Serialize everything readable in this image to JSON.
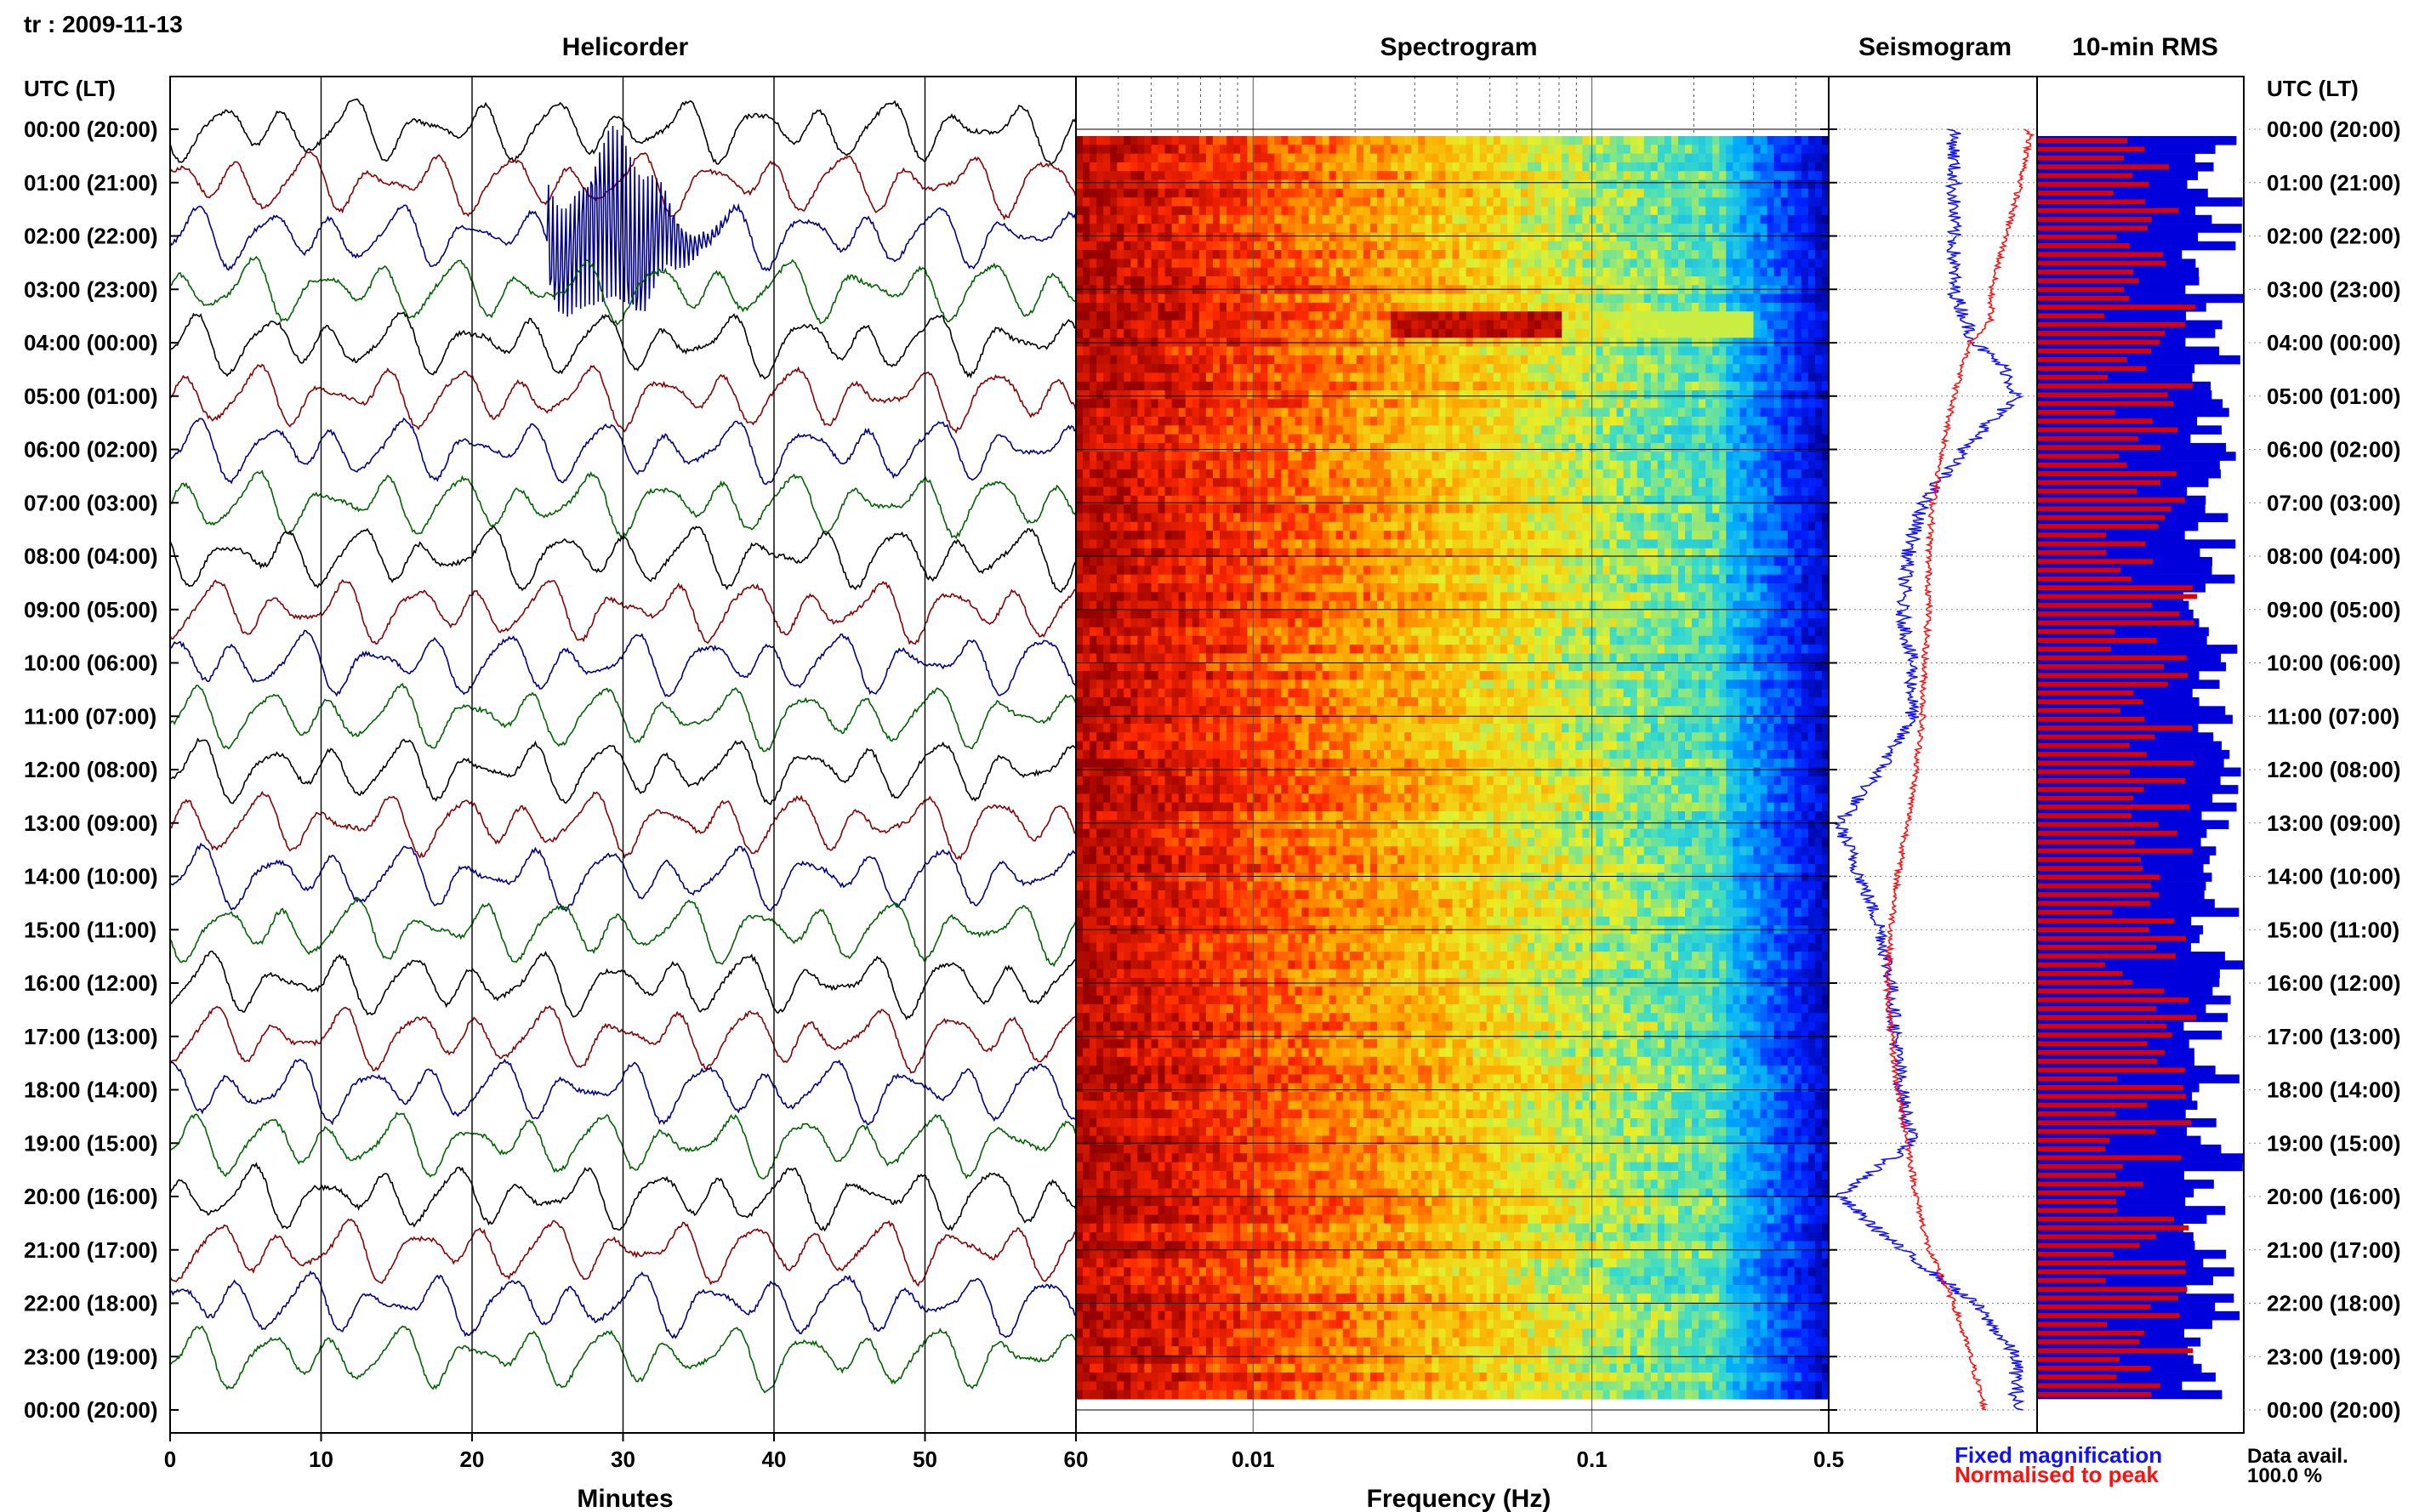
{
  "station_title": "tr : 2009-11-13",
  "panels": {
    "helicorder": "Helicorder",
    "spectrogram": "Spectrogram",
    "seismogram": "Seismogram",
    "rms": "10-min RMS"
  },
  "time_axis_header": "UTC (LT)",
  "time_labels": [
    "00:00 (20:00)",
    "01:00 (21:00)",
    "02:00 (22:00)",
    "03:00 (23:00)",
    "04:00 (00:00)",
    "05:00 (01:00)",
    "06:00 (02:00)",
    "07:00 (03:00)",
    "08:00 (04:00)",
    "09:00 (05:00)",
    "10:00 (06:00)",
    "11:00 (07:00)",
    "12:00 (08:00)",
    "13:00 (09:00)",
    "14:00 (10:00)",
    "15:00 (11:00)",
    "16:00 (12:00)",
    "17:00 (13:00)",
    "18:00 (14:00)",
    "19:00 (15:00)",
    "20:00 (16:00)",
    "21:00 (17:00)",
    "22:00 (18:00)",
    "23:00 (19:00)",
    "00:00 (20:00)"
  ],
  "helicorder_xlabel": "Minutes",
  "helicorder_ticks": [
    "0",
    "10",
    "20",
    "30",
    "40",
    "50",
    "60"
  ],
  "spectrogram_xlabel": "Frequency (Hz)",
  "spectrogram_ticks": [
    "0.01",
    "0.1",
    "0.5"
  ],
  "legend": {
    "fixed": "Fixed magnification",
    "normalised": "Normalised to peak",
    "data_avail_label": "Data avail.",
    "data_avail_value": "100.0 %"
  },
  "colors": {
    "trace_cycle": [
      "#000000",
      "#8b0000",
      "#00008b",
      "#006400"
    ],
    "fixed": "#1010ff",
    "normalised": "#ff1010",
    "rms_fixed": "#0000dd",
    "rms_normalised": "#dd0000"
  },
  "chart_data": [
    {
      "type": "line",
      "name": "Helicorder",
      "x_range_minutes": [
        0,
        60
      ],
      "rows": 24,
      "trace_color_cycle": [
        "black",
        "darkred",
        "darkblue",
        "darkgreen"
      ],
      "event": {
        "hour_row": 2,
        "start_minute": 25,
        "peak_minute": 30,
        "end_minute": 40
      }
    },
    {
      "type": "heatmap",
      "name": "Spectrogram",
      "x_scale": "log",
      "x_range_hz": [
        0.003,
        0.5
      ],
      "y_range_utc_hours": [
        0,
        24
      ],
      "event": {
        "utc_hour": 3.55,
        "f_low_hz": 0.025,
        "f_high_hz": 0.08
      }
    },
    {
      "type": "line",
      "name": "Seismogram",
      "series": [
        {
          "name": "Fixed magnification",
          "utc_hour": [
            0,
            1,
            2,
            3,
            4,
            4.5,
            5,
            6,
            7,
            8,
            9,
            10,
            11,
            12,
            13,
            14,
            15,
            16,
            17,
            18,
            19,
            20,
            21,
            22,
            23,
            24
          ],
          "amplitude": [
            0.6,
            0.6,
            0.6,
            0.6,
            0.7,
            0.85,
            0.9,
            0.65,
            0.45,
            0.38,
            0.35,
            0.4,
            0.4,
            0.25,
            0.05,
            0.15,
            0.25,
            0.3,
            0.32,
            0.35,
            0.4,
            0.05,
            0.35,
            0.7,
            0.9,
            0.9
          ]
        },
        {
          "name": "Normalised to peak",
          "utc_hour": [
            0,
            0.1,
            1,
            2,
            3,
            3.55,
            4,
            5,
            6,
            7,
            8,
            9,
            10,
            11,
            12,
            13,
            14,
            15,
            16,
            17,
            18,
            19,
            20,
            21,
            22,
            23,
            24
          ],
          "amplitude": [
            0.95,
            0.97,
            0.92,
            0.85,
            0.78,
            0.78,
            0.68,
            0.6,
            0.55,
            0.5,
            0.48,
            0.48,
            0.46,
            0.45,
            0.42,
            0.38,
            0.33,
            0.3,
            0.28,
            0.3,
            0.33,
            0.38,
            0.42,
            0.48,
            0.6,
            0.68,
            0.75
          ]
        }
      ]
    },
    {
      "type": "bar",
      "name": "10-min RMS",
      "bins": 144,
      "series": [
        {
          "name": "Fixed magnification",
          "mean_fraction": 0.85
        },
        {
          "name": "Normalised to peak",
          "mean_fraction": 0.55
        }
      ],
      "data_availability_percent": 100.0
    }
  ]
}
